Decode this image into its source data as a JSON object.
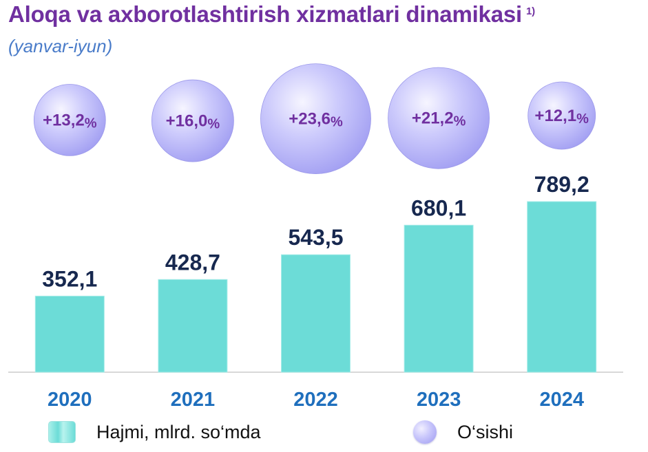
{
  "header": {
    "title": "Aloqa va axborotlashtirish xizmatlari dinamikasi",
    "footnote_marker": "1)",
    "subtitle": "(yanvar-iyun)"
  },
  "legend": {
    "volume_label": "Hajmi, mlrd. so‘mda",
    "growth_label": "O‘sishi"
  },
  "colors": {
    "title": "#7030a0",
    "subtitle": "#4a7cc9",
    "bar": "#6cdcd7",
    "value_label": "#17284f",
    "year_label": "#1f6fbd",
    "growth_text": "#7030a0",
    "bubble": "#c7c5fb"
  },
  "chart_data": {
    "type": "bar",
    "categories": [
      "2020",
      "2021",
      "2022",
      "2023",
      "2024"
    ],
    "series": [
      {
        "name": "Hajmi, mlrd. so‘mda",
        "values": [
          352.1,
          428.7,
          543.5,
          680.1,
          789.2
        ],
        "labels": [
          "352,1",
          "428,7",
          "543,5",
          "680,1",
          "789,2"
        ]
      },
      {
        "name": "O‘sishi",
        "values": [
          13.2,
          16.0,
          23.6,
          21.2,
          12.1
        ],
        "labels": [
          "+13,2",
          "+16,0",
          "+23,6",
          "+21,2",
          "+12,1"
        ],
        "unit": "%"
      }
    ],
    "title": "Aloqa va axborotlashtirish xizmatlari dinamikasi",
    "subtitle": "(yanvar-iyun)",
    "grid": false,
    "legend_position": "bottom"
  }
}
